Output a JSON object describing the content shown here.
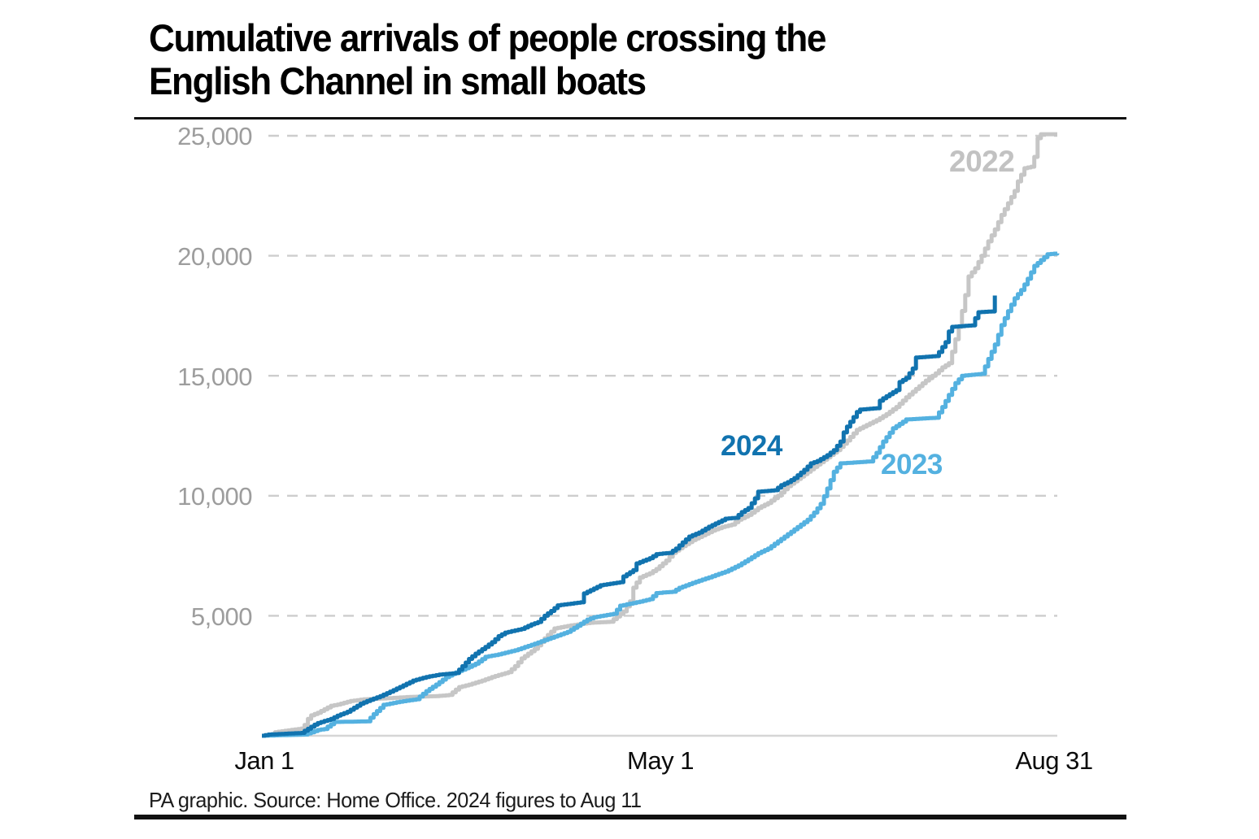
{
  "title": {
    "line1": "Cumulative arrivals of people crossing the",
    "line2": "English Channel in small boats"
  },
  "source_note": "PA graphic. Source: Home Office. 2024 figures to Aug 11",
  "colors": {
    "series_2022": "#c6c6c6",
    "series_2023": "#54b1e0",
    "series_2024": "#1173af",
    "label_2022": "#c2c2c2",
    "gridline": "#cdcdcd",
    "baseline": "#d6d6d6",
    "y_tick_text": "#9d9d9d",
    "x_tick_text": "#0b0b0b",
    "rule": "#111111"
  },
  "chart_data": {
    "type": "line",
    "title": "Cumulative arrivals of people crossing the English Channel in small boats",
    "xlabel": "",
    "ylabel": "",
    "grid": "dashed-horizontal",
    "legend_position": "inline-labels-on-lines",
    "x_axis": {
      "unit": "day-of-year",
      "range_days": [
        0,
        242
      ],
      "ticks": [
        {
          "label": "Jan 1",
          "day": 0
        },
        {
          "label": "May 1",
          "day": 121
        },
        {
          "label": "Aug 31",
          "day": 242
        }
      ]
    },
    "y_axis": {
      "range": [
        0,
        25000
      ],
      "ticks": [
        5000,
        10000,
        15000,
        20000,
        25000
      ],
      "tick_labels": [
        "5,000",
        "10,000",
        "15,000",
        "20,000",
        "25,000"
      ]
    },
    "series": [
      {
        "name": "2022",
        "color": "#c6c6c6",
        "final_value": 25065,
        "points": [
          [
            0,
            0
          ],
          [
            3,
            60
          ],
          [
            4,
            150
          ],
          [
            12,
            300
          ],
          [
            13,
            450
          ],
          [
            14,
            700
          ],
          [
            15,
            850
          ],
          [
            17,
            960
          ],
          [
            21,
            1250
          ],
          [
            23,
            1300
          ],
          [
            27,
            1450
          ],
          [
            31,
            1520
          ],
          [
            38,
            1560
          ],
          [
            45,
            1620
          ],
          [
            53,
            1650
          ],
          [
            57,
            1700
          ],
          [
            60,
            2030
          ],
          [
            63,
            2130
          ],
          [
            67,
            2300
          ],
          [
            70,
            2450
          ],
          [
            75,
            2650
          ],
          [
            77,
            2900
          ],
          [
            79,
            3220
          ],
          [
            83,
            3620
          ],
          [
            87,
            4200
          ],
          [
            89,
            4470
          ],
          [
            94,
            4600
          ],
          [
            100,
            4710
          ],
          [
            106,
            4750
          ],
          [
            110,
            5180
          ],
          [
            112,
            5600
          ],
          [
            113,
            6170
          ],
          [
            115,
            6600
          ],
          [
            118,
            6770
          ],
          [
            120,
            6947
          ],
          [
            123,
            7300
          ],
          [
            125,
            7620
          ],
          [
            128,
            7900
          ],
          [
            131,
            8150
          ],
          [
            134,
            8350
          ],
          [
            137,
            8550
          ],
          [
            140,
            8700
          ],
          [
            143,
            8800
          ],
          [
            145,
            9000
          ],
          [
            148,
            9200
          ],
          [
            151,
            9491
          ],
          [
            154,
            9700
          ],
          [
            157,
            10000
          ],
          [
            160,
            10400
          ],
          [
            163,
            10700
          ],
          [
            166,
            11000
          ],
          [
            169,
            11300
          ],
          [
            172,
            11600
          ],
          [
            175,
            11900
          ],
          [
            178,
            12300
          ],
          [
            181,
            12747
          ],
          [
            184,
            12950
          ],
          [
            187,
            13150
          ],
          [
            190,
            13400
          ],
          [
            193,
            13700
          ],
          [
            196,
            14100
          ],
          [
            199,
            14450
          ],
          [
            202,
            14800
          ],
          [
            205,
            15100
          ],
          [
            207,
            15350
          ],
          [
            209,
            15520
          ],
          [
            210,
            16000
          ],
          [
            212,
            17040
          ],
          [
            214,
            18360
          ],
          [
            215,
            19140
          ],
          [
            217,
            19480
          ],
          [
            219,
            20000
          ],
          [
            221,
            20600
          ],
          [
            223,
            21100
          ],
          [
            225,
            21700
          ],
          [
            227,
            22190
          ],
          [
            229,
            22700
          ],
          [
            230,
            23100
          ],
          [
            232,
            23650
          ],
          [
            234,
            23710
          ],
          [
            235,
            24120
          ],
          [
            236,
            24900
          ],
          [
            237,
            25065
          ],
          [
            242,
            25065
          ]
        ]
      },
      {
        "name": "2023",
        "color": "#54b1e0",
        "final_value": 20101,
        "points": [
          [
            0,
            0
          ],
          [
            13,
            50
          ],
          [
            17,
            240
          ],
          [
            19,
            280
          ],
          [
            22,
            575
          ],
          [
            32,
            600
          ],
          [
            34,
            900
          ],
          [
            37,
            1290
          ],
          [
            42,
            1420
          ],
          [
            47,
            1520
          ],
          [
            50,
            1860
          ],
          [
            53,
            2135
          ],
          [
            56,
            2440
          ],
          [
            59,
            2640
          ],
          [
            62,
            2810
          ],
          [
            65,
            3000
          ],
          [
            68,
            3290
          ],
          [
            72,
            3390
          ],
          [
            77,
            3560
          ],
          [
            82,
            3790
          ],
          [
            91,
            4230
          ],
          [
            93,
            4330
          ],
          [
            99,
            4840
          ],
          [
            101,
            4940
          ],
          [
            107,
            5080
          ],
          [
            109,
            5420
          ],
          [
            115,
            5590
          ],
          [
            118,
            5690
          ],
          [
            120,
            5946
          ],
          [
            125,
            6000
          ],
          [
            127,
            6165
          ],
          [
            131,
            6370
          ],
          [
            136,
            6600
          ],
          [
            141,
            6840
          ],
          [
            145,
            7100
          ],
          [
            148,
            7350
          ],
          [
            151,
            7610
          ],
          [
            154,
            7800
          ],
          [
            157,
            8100
          ],
          [
            160,
            8400
          ],
          [
            163,
            8700
          ],
          [
            166,
            9000
          ],
          [
            168,
            9300
          ],
          [
            170,
            9660
          ],
          [
            172,
            10300
          ],
          [
            174,
            11000
          ],
          [
            176,
            11350
          ],
          [
            185,
            11430
          ],
          [
            187,
            11790
          ],
          [
            189,
            12260
          ],
          [
            192,
            12810
          ],
          [
            196,
            13180
          ],
          [
            205,
            13250
          ],
          [
            207,
            13700
          ],
          [
            209,
            14200
          ],
          [
            211,
            14700
          ],
          [
            213,
            15000
          ],
          [
            219,
            15080
          ],
          [
            221,
            15700
          ],
          [
            223,
            16300
          ],
          [
            225,
            17110
          ],
          [
            227,
            17690
          ],
          [
            229,
            18230
          ],
          [
            231,
            18570
          ],
          [
            233,
            19040
          ],
          [
            235,
            19580
          ],
          [
            237,
            19820
          ],
          [
            239,
            20060
          ],
          [
            242,
            20101
          ]
        ]
      },
      {
        "name": "2024",
        "color": "#1173af",
        "final_value": 18342,
        "final_day": 223,
        "points": [
          [
            0,
            0
          ],
          [
            2,
            50
          ],
          [
            12,
            120
          ],
          [
            14,
            290
          ],
          [
            16,
            460
          ],
          [
            17,
            530
          ],
          [
            21,
            700
          ],
          [
            23,
            840
          ],
          [
            26,
            1000
          ],
          [
            30,
            1335
          ],
          [
            33,
            1500
          ],
          [
            36,
            1650
          ],
          [
            40,
            1900
          ],
          [
            43,
            2100
          ],
          [
            46,
            2300
          ],
          [
            50,
            2450
          ],
          [
            54,
            2550
          ],
          [
            59,
            2613
          ],
          [
            61,
            2900
          ],
          [
            63,
            3200
          ],
          [
            65,
            3420
          ],
          [
            68,
            3700
          ],
          [
            70,
            3900
          ],
          [
            72,
            4150
          ],
          [
            74,
            4300
          ],
          [
            79,
            4450
          ],
          [
            82,
            4640
          ],
          [
            84,
            4740
          ],
          [
            86,
            5000
          ],
          [
            88,
            5200
          ],
          [
            90,
            5435
          ],
          [
            97,
            5560
          ],
          [
            98,
            5930
          ],
          [
            103,
            6270
          ],
          [
            109,
            6400
          ],
          [
            110,
            6640
          ],
          [
            113,
            6900
          ],
          [
            114,
            7180
          ],
          [
            118,
            7400
          ],
          [
            120,
            7567
          ],
          [
            124,
            7620
          ],
          [
            126,
            7800
          ],
          [
            128,
            8060
          ],
          [
            130,
            8300
          ],
          [
            133,
            8470
          ],
          [
            136,
            8710
          ],
          [
            139,
            8910
          ],
          [
            141,
            9045
          ],
          [
            144,
            9080
          ],
          [
            146,
            9320
          ],
          [
            148,
            9490
          ],
          [
            150,
            9890
          ],
          [
            151,
            10170
          ],
          [
            156,
            10230
          ],
          [
            158,
            10440
          ],
          [
            160,
            10570
          ],
          [
            162,
            10740
          ],
          [
            165,
            11080
          ],
          [
            167,
            11350
          ],
          [
            169,
            11450
          ],
          [
            172,
            11690
          ],
          [
            174,
            11900
          ],
          [
            176,
            12260
          ],
          [
            177,
            12640
          ],
          [
            178,
            12880
          ],
          [
            180,
            13280
          ],
          [
            181,
            13489
          ],
          [
            182,
            13590
          ],
          [
            187,
            13650
          ],
          [
            188,
            13960
          ],
          [
            189,
            14060
          ],
          [
            191,
            14230
          ],
          [
            193,
            14400
          ],
          [
            194,
            14740
          ],
          [
            196,
            14910
          ],
          [
            198,
            15300
          ],
          [
            199,
            15760
          ],
          [
            205,
            15820
          ],
          [
            206,
            15990
          ],
          [
            208,
            16400
          ],
          [
            209,
            16842
          ],
          [
            210,
            17040
          ],
          [
            216,
            17100
          ],
          [
            217,
            17400
          ],
          [
            218,
            17650
          ],
          [
            222,
            17680
          ],
          [
            223,
            18342
          ]
        ]
      }
    ]
  },
  "series_labels": {
    "s2022": "2022",
    "s2023": "2023",
    "s2024": "2024"
  }
}
